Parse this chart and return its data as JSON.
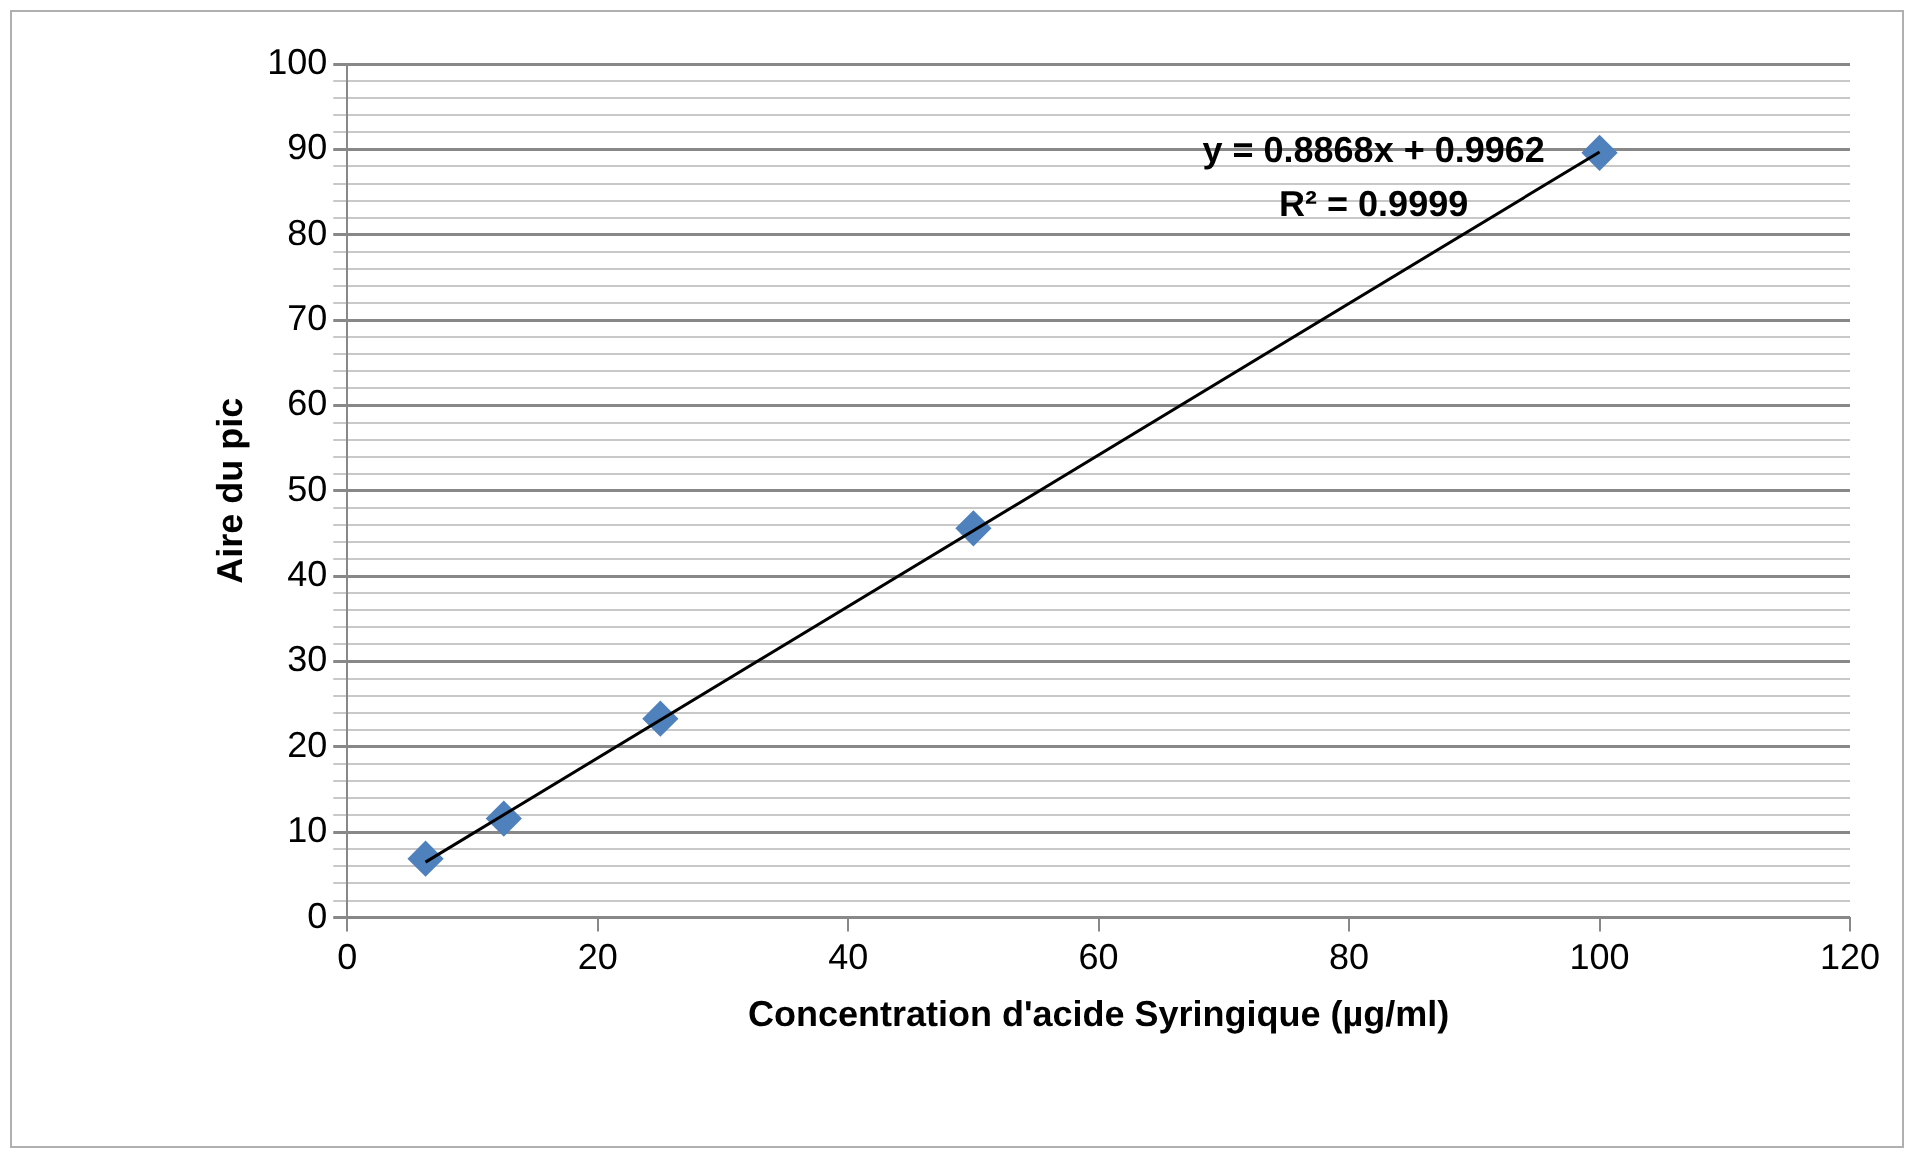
{
  "chart_data": {
    "type": "scatter",
    "xlabel": "Concentration d'acide Syringique (µg/ml)",
    "ylabel": "Aire du pic",
    "x": [
      6.25,
      12.5,
      25,
      50,
      100
    ],
    "series": [
      {
        "color": "#4f81bd",
        "marker": "diamond",
        "values": [
          6.9,
          11.6,
          23.3,
          45.6,
          89.6
        ]
      },
      {
        "type": "line",
        "color": "#000000",
        "marker": "none",
        "line_style": "solid",
        "x": [
          6.25,
          100
        ],
        "values": [
          6.5,
          89.7
        ]
      }
    ],
    "xlim": [
      0,
      120
    ],
    "xticks": [
      0,
      20,
      40,
      60,
      80,
      100,
      120
    ],
    "ylim": [
      0,
      100
    ],
    "yticks": [
      0,
      {
        "value": 2,
        "label": null
      },
      {
        "value": 4,
        "label": null
      },
      {
        "value": 6,
        "label": null
      },
      {
        "value": 8,
        "label": null
      },
      10,
      {
        "value": 12,
        "label": null
      },
      {
        "value": 14,
        "label": null
      },
      {
        "value": 16,
        "label": null
      },
      {
        "value": 18,
        "label": null
      },
      20,
      {
        "value": 22,
        "label": null
      },
      {
        "value": 24,
        "label": null
      },
      {
        "value": 26,
        "label": null
      },
      {
        "value": 28,
        "label": null
      },
      30,
      {
        "value": 32,
        "label": null
      },
      {
        "value": 34,
        "label": null
      },
      {
        "value": 36,
        "label": null
      },
      {
        "value": 38,
        "label": null
      },
      40,
      {
        "value": 42,
        "label": null
      },
      {
        "value": 44,
        "label": null
      },
      {
        "value": 46,
        "label": null
      },
      {
        "value": 48,
        "label": null
      },
      50,
      {
        "value": 52,
        "label": null
      },
      {
        "value": 54,
        "label": null
      },
      {
        "value": 56,
        "label": null
      },
      {
        "value": 58,
        "label": null
      },
      60,
      {
        "value": 62,
        "label": null
      },
      {
        "value": 64,
        "label": null
      },
      {
        "value": 66,
        "label": null
      },
      {
        "value": 68,
        "label": null
      },
      70,
      {
        "value": 72,
        "label": null
      },
      {
        "value": 74,
        "label": null
      },
      {
        "value": 76,
        "label": null
      },
      {
        "value": 78,
        "label": null
      },
      80,
      {
        "value": 82,
        "label": null
      },
      {
        "value": 84,
        "label": null
      },
      {
        "value": 86,
        "label": null
      },
      {
        "value": 88,
        "label": null
      },
      90,
      {
        "value": 92,
        "label": null
      },
      {
        "value": 94,
        "label": null
      },
      {
        "value": 96,
        "label": null
      },
      {
        "value": 98,
        "label": null
      },
      100
    ],
    "grid": "y",
    "legend": false,
    "annotations": [
      "y = 0.8868x + 0.9962",
      "R² = 0.9999"
    ]
  }
}
